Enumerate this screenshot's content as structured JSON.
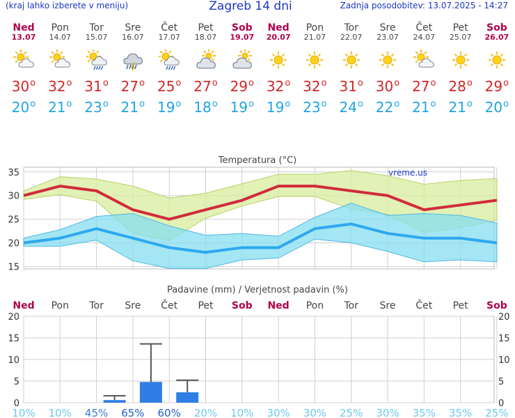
{
  "header": {
    "hint": "(kraj lahko izberete v meniju)",
    "city": "Zagreb 14 dni",
    "updated": "Zadnja posodobitev: 13.07.2025 - 14:27"
  },
  "days": [
    {
      "name": "Ned",
      "date": "13.07",
      "weekend": true,
      "icon": "partly-sunny-icon",
      "max": "30",
      "min": "20"
    },
    {
      "name": "Pon",
      "date": "14.07",
      "weekend": false,
      "icon": "partly-sunny-icon",
      "max": "32",
      "min": "21"
    },
    {
      "name": "Tor",
      "date": "15.07",
      "weekend": false,
      "icon": "sun-rain-icon",
      "max": "31",
      "min": "23"
    },
    {
      "name": "Sre",
      "date": "16.07",
      "weekend": false,
      "icon": "thunderstorm-icon",
      "max": "27",
      "min": "21"
    },
    {
      "name": "Čet",
      "date": "17.07",
      "weekend": false,
      "icon": "sun-rain-icon",
      "max": "25",
      "min": "19"
    },
    {
      "name": "Pet",
      "date": "18.07",
      "weekend": false,
      "icon": "cloudy-icon",
      "max": "27",
      "min": "18"
    },
    {
      "name": "Sob",
      "date": "19.07",
      "weekend": true,
      "icon": "cloudy-icon",
      "max": "29",
      "min": "19"
    },
    {
      "name": "Ned",
      "date": "20.07",
      "weekend": true,
      "icon": "sun-icon",
      "max": "32",
      "min": "19"
    },
    {
      "name": "Pon",
      "date": "21.07",
      "weekend": false,
      "icon": "sun-icon",
      "max": "32",
      "min": "23"
    },
    {
      "name": "Tor",
      "date": "22.07",
      "weekend": false,
      "icon": "sun-icon",
      "max": "31",
      "min": "24"
    },
    {
      "name": "Sre",
      "date": "23.07",
      "weekend": false,
      "icon": "sun-icon",
      "max": "30",
      "min": "22"
    },
    {
      "name": "Čet",
      "date": "24.07",
      "weekend": false,
      "icon": "partly-sunny-icon",
      "max": "27",
      "min": "21"
    },
    {
      "name": "Pet",
      "date": "25.07",
      "weekend": false,
      "icon": "sun-icon",
      "max": "28",
      "min": "21"
    },
    {
      "name": "Sob",
      "date": "26.07",
      "weekend": true,
      "icon": "sun-icon",
      "max": "29",
      "min": "20"
    }
  ],
  "chart_data": [
    {
      "type": "line",
      "title": "Temperatura (°C)",
      "watermark": "vreme.us",
      "ylim": [
        14.5,
        36
      ],
      "yticks": [
        "15",
        "20",
        "25",
        "30",
        "35"
      ],
      "grid": true,
      "series": [
        {
          "values": [
            30,
            32,
            31,
            27,
            25,
            27,
            29,
            32,
            32,
            31,
            30,
            27,
            28,
            29
          ],
          "color": "#d12b3c"
        },
        {
          "values": [
            20,
            21,
            23,
            21,
            19,
            18,
            19,
            19,
            23,
            24,
            22,
            21,
            21,
            20
          ],
          "color": "#2ea8ee"
        }
      ],
      "bands": [
        {
          "upper": [
            31,
            34,
            33.5,
            32,
            29.5,
            30.5,
            32.5,
            34.5,
            34.5,
            35.3,
            34.2,
            32.4,
            33.2,
            33.6
          ],
          "lower": [
            29.2,
            30.2,
            28.8,
            22,
            20.5,
            25.2,
            27.8,
            29.8,
            29.8,
            27.2,
            26,
            22.2,
            23.2,
            24.8
          ],
          "color": "#d8ec9c"
        },
        {
          "upper": [
            21,
            22.8,
            25.6,
            26.2,
            23.6,
            21.6,
            22,
            21.4,
            25.4,
            28.4,
            25.8,
            26.2,
            25.8,
            24.2
          ],
          "lower": [
            19.3,
            19.3,
            20.6,
            16.2,
            14.6,
            14.6,
            16.4,
            16.8,
            20.8,
            20,
            18.2,
            16,
            16.4,
            16
          ],
          "color": "#86def0"
        }
      ]
    },
    {
      "type": "bar",
      "title": "Padavine (mm) / Verjetnost padavin (%)",
      "categories": [
        "Ned",
        "Pon",
        "Tor",
        "Sre",
        "Čet",
        "Pet",
        "Sob",
        "Ned",
        "Pon",
        "Tor",
        "Sre",
        "Čet",
        "Pet",
        "Sob"
      ],
      "weekend": [
        true,
        false,
        false,
        false,
        false,
        false,
        true,
        true,
        false,
        false,
        false,
        false,
        false,
        true
      ],
      "values": [
        0,
        0,
        0.6,
        4.8,
        2.4,
        0,
        0,
        0,
        0,
        0,
        0,
        0,
        0,
        0
      ],
      "error_max": [
        0,
        0,
        1.6,
        13.6,
        5.2,
        0,
        0,
        0,
        0,
        0,
        0,
        0,
        0,
        0
      ],
      "probability": [
        "10%",
        "10%",
        "45%",
        "65%",
        "60%",
        "20%",
        "10%",
        "30%",
        "30%",
        "25%",
        "30%",
        "35%",
        "35%",
        "25%"
      ],
      "ylim": [
        0,
        20
      ],
      "yticks": [
        "0",
        "5",
        "10",
        "15",
        "20"
      ],
      "grid": true,
      "bar_color": "#2f7ee4"
    }
  ]
}
